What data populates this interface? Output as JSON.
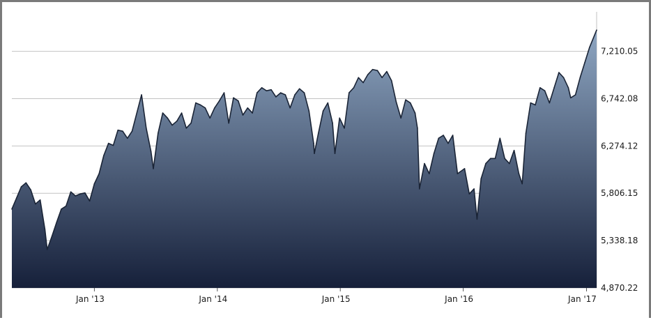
{
  "colors": {
    "frame": "#7a7a7a",
    "grid": "#c2c2c2",
    "area_top": "#8ea6c2",
    "area_bottom": "#16203a",
    "line": "#1a2436"
  },
  "chart_data": {
    "type": "area",
    "title": "",
    "xlabel": "",
    "ylabel": "",
    "grid": true,
    "y_axis_side": "right",
    "ylim": [
      4870.22,
      7600
    ],
    "yticks": [
      {
        "value": 7210.05,
        "label": "7,210.05"
      },
      {
        "value": 6742.08,
        "label": "6,742.08"
      },
      {
        "value": 6274.12,
        "label": "6,274.12"
      },
      {
        "value": 5806.15,
        "label": "5,806.15"
      },
      {
        "value": 5338.18,
        "label": "5,338.18"
      },
      {
        "value": 4870.22,
        "label": "4,870.22"
      }
    ],
    "xlim": [
      "2012-05-01",
      "2017-01-31"
    ],
    "xticks": [
      {
        "value": "2013-01-01",
        "label": "Jan '13"
      },
      {
        "value": "2014-01-01",
        "label": "Jan '14"
      },
      {
        "value": "2015-01-01",
        "label": "Jan '15"
      },
      {
        "value": "2016-01-01",
        "label": "Jan '16"
      },
      {
        "value": "2017-01-01",
        "label": "Jan '17"
      }
    ],
    "series": [
      {
        "points": [
          [
            "2012-05-01",
            5650
          ],
          [
            "2012-05-15",
            5760
          ],
          [
            "2012-05-29",
            5870
          ],
          [
            "2012-06-12",
            5910
          ],
          [
            "2012-06-26",
            5840
          ],
          [
            "2012-07-10",
            5700
          ],
          [
            "2012-07-24",
            5740
          ],
          [
            "2012-08-07",
            5450
          ],
          [
            "2012-08-14",
            5250
          ],
          [
            "2012-08-28",
            5380
          ],
          [
            "2012-09-11",
            5520
          ],
          [
            "2012-09-25",
            5650
          ],
          [
            "2012-10-09",
            5680
          ],
          [
            "2012-10-23",
            5820
          ],
          [
            "2012-11-06",
            5780
          ],
          [
            "2012-11-20",
            5800
          ],
          [
            "2012-12-04",
            5810
          ],
          [
            "2012-12-18",
            5730
          ],
          [
            "2013-01-01",
            5900
          ],
          [
            "2013-01-15",
            6000
          ],
          [
            "2013-01-29",
            6180
          ],
          [
            "2013-02-12",
            6300
          ],
          [
            "2013-02-26",
            6280
          ],
          [
            "2013-03-12",
            6430
          ],
          [
            "2013-03-26",
            6420
          ],
          [
            "2013-04-09",
            6350
          ],
          [
            "2013-04-23",
            6420
          ],
          [
            "2013-05-07",
            6600
          ],
          [
            "2013-05-21",
            6780
          ],
          [
            "2013-06-04",
            6450
          ],
          [
            "2013-06-18",
            6220
          ],
          [
            "2013-06-25",
            6050
          ],
          [
            "2013-07-09",
            6400
          ],
          [
            "2013-07-23",
            6600
          ],
          [
            "2013-08-06",
            6550
          ],
          [
            "2013-08-20",
            6480
          ],
          [
            "2013-09-03",
            6520
          ],
          [
            "2013-09-17",
            6600
          ],
          [
            "2013-10-01",
            6450
          ],
          [
            "2013-10-15",
            6500
          ],
          [
            "2013-10-29",
            6700
          ],
          [
            "2013-11-12",
            6680
          ],
          [
            "2013-11-26",
            6650
          ],
          [
            "2013-12-10",
            6550
          ],
          [
            "2013-12-24",
            6650
          ],
          [
            "2014-01-07",
            6720
          ],
          [
            "2014-01-21",
            6800
          ],
          [
            "2014-02-04",
            6500
          ],
          [
            "2014-02-18",
            6750
          ],
          [
            "2014-03-04",
            6720
          ],
          [
            "2014-03-18",
            6580
          ],
          [
            "2014-04-01",
            6650
          ],
          [
            "2014-04-15",
            6600
          ],
          [
            "2014-04-29",
            6800
          ],
          [
            "2014-05-13",
            6850
          ],
          [
            "2014-05-27",
            6820
          ],
          [
            "2014-06-10",
            6830
          ],
          [
            "2014-06-24",
            6760
          ],
          [
            "2014-07-08",
            6800
          ],
          [
            "2014-07-22",
            6780
          ],
          [
            "2014-08-05",
            6650
          ],
          [
            "2014-08-19",
            6780
          ],
          [
            "2014-09-02",
            6840
          ],
          [
            "2014-09-16",
            6800
          ],
          [
            "2014-09-30",
            6620
          ],
          [
            "2014-10-14",
            6300
          ],
          [
            "2014-10-16",
            6200
          ],
          [
            "2014-10-28",
            6400
          ],
          [
            "2014-11-11",
            6620
          ],
          [
            "2014-11-25",
            6700
          ],
          [
            "2014-12-09",
            6500
          ],
          [
            "2014-12-16",
            6200
          ],
          [
            "2014-12-30",
            6550
          ],
          [
            "2015-01-13",
            6450
          ],
          [
            "2015-01-27",
            6800
          ],
          [
            "2015-02-10",
            6850
          ],
          [
            "2015-02-24",
            6950
          ],
          [
            "2015-03-10",
            6900
          ],
          [
            "2015-03-24",
            6980
          ],
          [
            "2015-04-07",
            7030
          ],
          [
            "2015-04-21",
            7020
          ],
          [
            "2015-05-05",
            6950
          ],
          [
            "2015-05-19",
            7010
          ],
          [
            "2015-06-02",
            6920
          ],
          [
            "2015-06-16",
            6710
          ],
          [
            "2015-06-30",
            6550
          ],
          [
            "2015-07-14",
            6730
          ],
          [
            "2015-07-28",
            6700
          ],
          [
            "2015-08-11",
            6600
          ],
          [
            "2015-08-18",
            6450
          ],
          [
            "2015-08-24",
            5850
          ],
          [
            "2015-09-08",
            6100
          ],
          [
            "2015-09-22",
            6000
          ],
          [
            "2015-10-06",
            6200
          ],
          [
            "2015-10-20",
            6350
          ],
          [
            "2015-11-03",
            6380
          ],
          [
            "2015-11-17",
            6300
          ],
          [
            "2015-12-01",
            6380
          ],
          [
            "2015-12-15",
            6000
          ],
          [
            "2016-01-05",
            6050
          ],
          [
            "2016-01-19",
            5800
          ],
          [
            "2016-02-02",
            5850
          ],
          [
            "2016-02-11",
            5550
          ],
          [
            "2016-02-23",
            5950
          ],
          [
            "2016-03-08",
            6100
          ],
          [
            "2016-03-22",
            6150
          ],
          [
            "2016-04-05",
            6150
          ],
          [
            "2016-04-19",
            6350
          ],
          [
            "2016-05-03",
            6150
          ],
          [
            "2016-05-17",
            6100
          ],
          [
            "2016-05-31",
            6230
          ],
          [
            "2016-06-14",
            6000
          ],
          [
            "2016-06-24",
            5900
          ],
          [
            "2016-07-05",
            6400
          ],
          [
            "2016-07-19",
            6700
          ],
          [
            "2016-08-02",
            6680
          ],
          [
            "2016-08-16",
            6850
          ],
          [
            "2016-08-30",
            6820
          ],
          [
            "2016-09-13",
            6700
          ],
          [
            "2016-09-27",
            6850
          ],
          [
            "2016-10-11",
            7000
          ],
          [
            "2016-10-25",
            6950
          ],
          [
            "2016-11-08",
            6850
          ],
          [
            "2016-11-15",
            6750
          ],
          [
            "2016-11-29",
            6780
          ],
          [
            "2016-12-13",
            6950
          ],
          [
            "2016-12-27",
            7100
          ],
          [
            "2017-01-10",
            7250
          ],
          [
            "2017-01-31",
            7420
          ]
        ]
      }
    ]
  }
}
